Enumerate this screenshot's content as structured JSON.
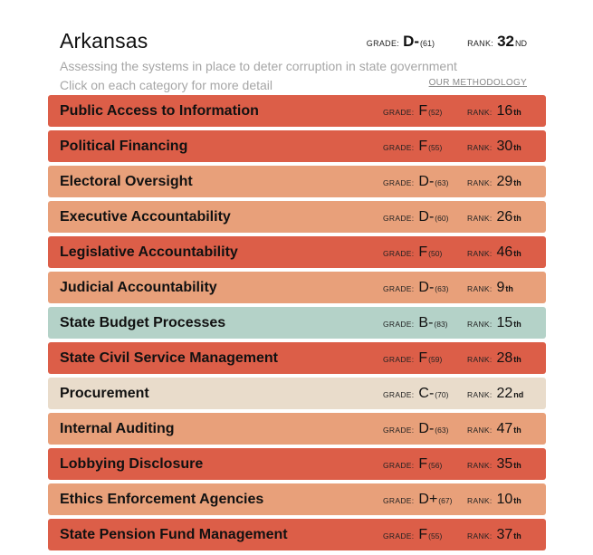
{
  "header": {
    "state": "Arkansas",
    "grade_label": "GRADE:",
    "grade": "D-",
    "grade_score": "(61)",
    "rank_label": "RANK:",
    "rank": "32",
    "rank_suffix": "ND",
    "subtitle": "Assessing the systems in place to deter corruption in state government",
    "instructions": "Click on each category for more detail",
    "methodology_link": "OUR METHODOLOGY"
  },
  "colors": {
    "f": "#dc5e48",
    "d": "#e8a07a",
    "b": "#b4d2c8",
    "c": "#e9dccb"
  },
  "categories": [
    {
      "name": "Public Access to Information",
      "grade_label": "GRADE:",
      "grade": "F",
      "score": "(52)",
      "rank_label": "RANK:",
      "rank": "16",
      "suffix": "th",
      "tier": "f"
    },
    {
      "name": "Political Financing",
      "grade_label": "GRADE:",
      "grade": "F",
      "score": "(55)",
      "rank_label": "RANK:",
      "rank": "30",
      "suffix": "th",
      "tier": "f"
    },
    {
      "name": "Electoral Oversight",
      "grade_label": "GRADE:",
      "grade": "D-",
      "score": "(63)",
      "rank_label": "RANK:",
      "rank": "29",
      "suffix": "th",
      "tier": "d"
    },
    {
      "name": "Executive Accountability",
      "grade_label": "GRADE:",
      "grade": "D-",
      "score": "(60)",
      "rank_label": "RANK:",
      "rank": "26",
      "suffix": "th",
      "tier": "d"
    },
    {
      "name": "Legislative Accountability",
      "grade_label": "GRADE:",
      "grade": "F",
      "score": "(50)",
      "rank_label": "RANK:",
      "rank": "46",
      "suffix": "th",
      "tier": "f"
    },
    {
      "name": "Judicial Accountability",
      "grade_label": "GRADE:",
      "grade": "D-",
      "score": "(63)",
      "rank_label": "RANK:",
      "rank": "9",
      "suffix": "th",
      "tier": "d"
    },
    {
      "name": "State Budget Processes",
      "grade_label": "GRADE:",
      "grade": "B-",
      "score": "(83)",
      "rank_label": "RANK:",
      "rank": "15",
      "suffix": "th",
      "tier": "b"
    },
    {
      "name": "State Civil Service Management",
      "grade_label": "GRADE:",
      "grade": "F",
      "score": "(59)",
      "rank_label": "RANK:",
      "rank": "28",
      "suffix": "th",
      "tier": "f"
    },
    {
      "name": "Procurement",
      "grade_label": "GRADE:",
      "grade": "C-",
      "score": "(70)",
      "rank_label": "RANK:",
      "rank": "22",
      "suffix": "nd",
      "tier": "c"
    },
    {
      "name": "Internal Auditing",
      "grade_label": "GRADE:",
      "grade": "D-",
      "score": "(63)",
      "rank_label": "RANK:",
      "rank": "47",
      "suffix": "th",
      "tier": "d"
    },
    {
      "name": "Lobbying Disclosure",
      "grade_label": "GRADE:",
      "grade": "F",
      "score": "(56)",
      "rank_label": "RANK:",
      "rank": "35",
      "suffix": "th",
      "tier": "f"
    },
    {
      "name": "Ethics Enforcement Agencies",
      "grade_label": "GRADE:",
      "grade": "D+",
      "score": "(67)",
      "rank_label": "RANK:",
      "rank": "10",
      "suffix": "th",
      "tier": "d"
    },
    {
      "name": "State Pension Fund Management",
      "grade_label": "GRADE:",
      "grade": "F",
      "score": "(55)",
      "rank_label": "RANK:",
      "rank": "37",
      "suffix": "th",
      "tier": "f"
    }
  ]
}
